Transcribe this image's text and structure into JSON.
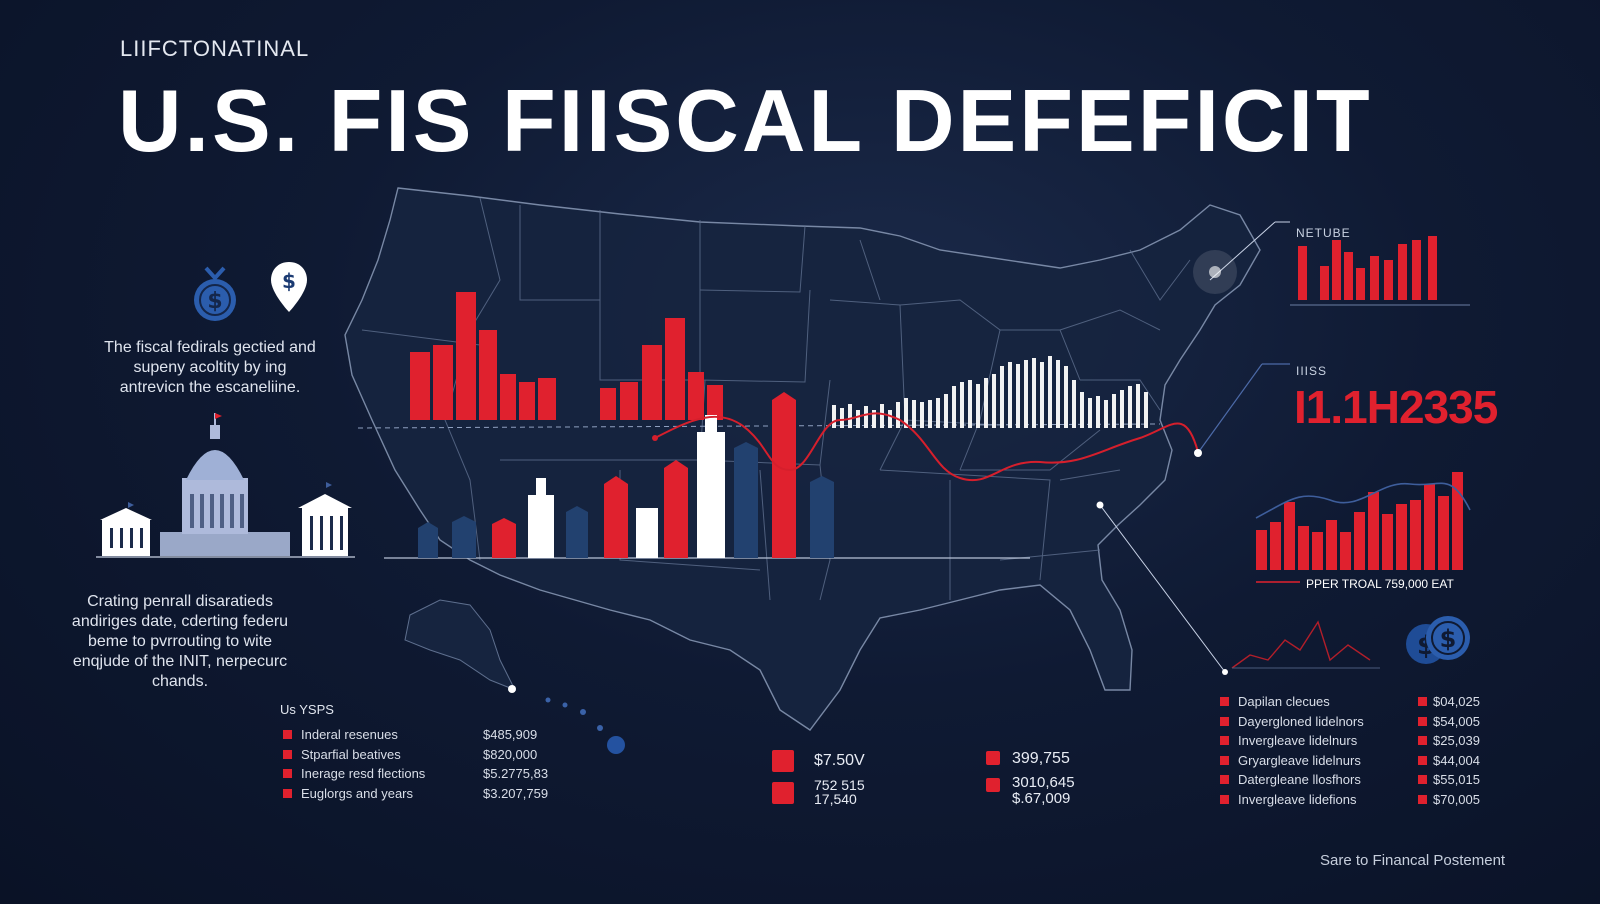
{
  "header": {
    "kicker": "LIIFCTONATINAL",
    "title": "U.S. FIS  FIISCAL DEFEFICIT"
  },
  "left_panel": {
    "intro_text": "The fiscal fedirals gectied and supeny acoltity by ing antrevicn the escaneliine.",
    "description_text": "Crating penrall disaratieds andiriges date, cderting federu beme to pvrrouting to wite enqjude of the INIT, nerpecurc chands."
  },
  "us_ysps": {
    "heading": "Us YSPS",
    "items": [
      {
        "label": "Inderal resenues",
        "value": "$485,909"
      },
      {
        "label": "Stparfial beatives",
        "value": "$820,000"
      },
      {
        "label": "Inerage resd flections",
        "value": "$5.2775,83"
      },
      {
        "label": "Euglorgs and years",
        "value": "$3.207,759"
      }
    ]
  },
  "middle_stats": {
    "a_value": "$7.50V",
    "b_line1": "752 515",
    "b_line2": "17,540",
    "c_value": "399,755",
    "d_line1": "3010,645",
    "d_line2": "$.67,009"
  },
  "right_panel": {
    "netube_label": "NETUBE",
    "ils_label": "IIISS",
    "big_number": "I1.1H2335",
    "pper_label": "PPER TROAL 759,000 EAT",
    "list": [
      {
        "label": "Dapilan clecues",
        "value": "$04,025"
      },
      {
        "label": "Dayergloned lidelnors",
        "value": "$54,005"
      },
      {
        "label": "Invergleave lidelnurs",
        "value": "$25,039"
      },
      {
        "label": "Gryargleave lidelnurs",
        "value": "$44,004"
      },
      {
        "label": "Datergleane llosfhors",
        "value": "$55,015"
      },
      {
        "label": "Invergleave lidefions",
        "value": "$70,005"
      }
    ]
  },
  "footer": {
    "text": "Sare to Financal Postement"
  },
  "colors": {
    "background": "#0f1a33",
    "accent_red": "#e0212e",
    "accent_blue": "#22416f",
    "text_white": "#ffffff"
  },
  "icons": [
    "money-bag-icon",
    "dollar-pin-icon",
    "capitol-building-icon",
    "dollar-coins-icon"
  ]
}
